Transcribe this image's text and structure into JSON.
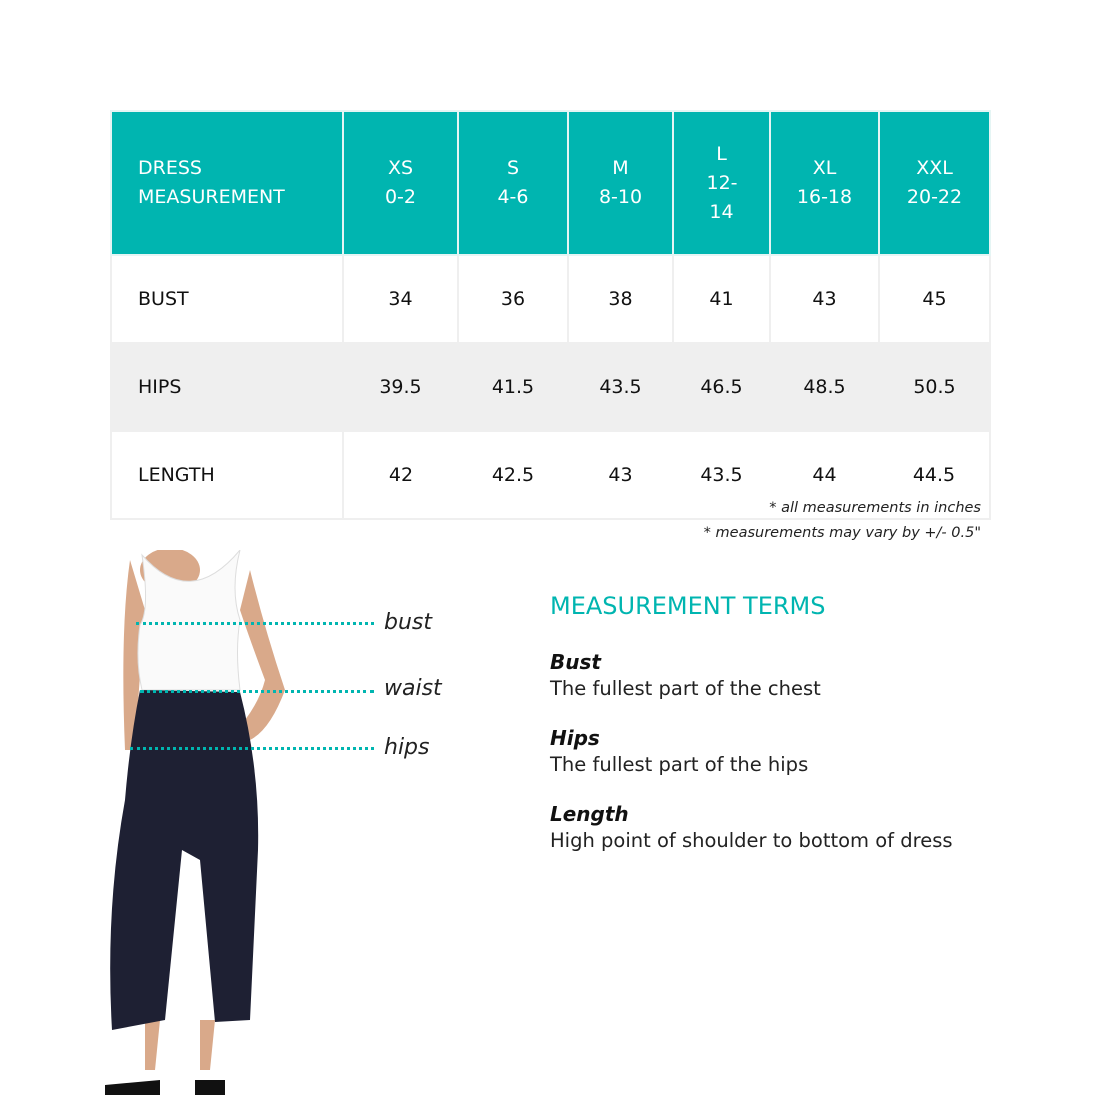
{
  "table": {
    "header": {
      "title": [
        "DRESS",
        "MEASUREMENT"
      ],
      "sizes": [
        {
          "size": "XS",
          "range": "0-2"
        },
        {
          "size": "S",
          "range": "4-6"
        },
        {
          "size": "M",
          "range": "8-10"
        },
        {
          "size": "L",
          "range": "12-14"
        },
        {
          "size": "XL",
          "range": "16-18"
        },
        {
          "size": "XXL",
          "range": "20-22"
        }
      ]
    },
    "rows": [
      {
        "label": "BUST",
        "values": [
          "34",
          "36",
          "38",
          "41",
          "43",
          "45"
        ]
      },
      {
        "label": "HIPS",
        "values": [
          "39.5",
          "41.5",
          "43.5",
          "46.5",
          "48.5",
          "50.5"
        ]
      },
      {
        "label": "LENGTH",
        "values": [
          "42",
          "42.5",
          "43",
          "43.5",
          "44",
          "44.5"
        ]
      }
    ]
  },
  "notes": [
    "* all measurements in inches",
    "* measurements may vary by +/- 0.5\""
  ],
  "figure": {
    "labels": [
      "bust",
      "waist",
      "hips"
    ]
  },
  "terms": {
    "heading": "MEASUREMENT TERMS",
    "items": [
      {
        "term": "Bust",
        "desc": "The fullest part of the chest"
      },
      {
        "term": "Hips",
        "desc": "The fullest part of the hips"
      },
      {
        "term": "Length",
        "desc": "High point of shoulder to bottom of dress"
      }
    ]
  },
  "colors": {
    "accent": "#00b5b0",
    "row_alt": "#efefef"
  }
}
